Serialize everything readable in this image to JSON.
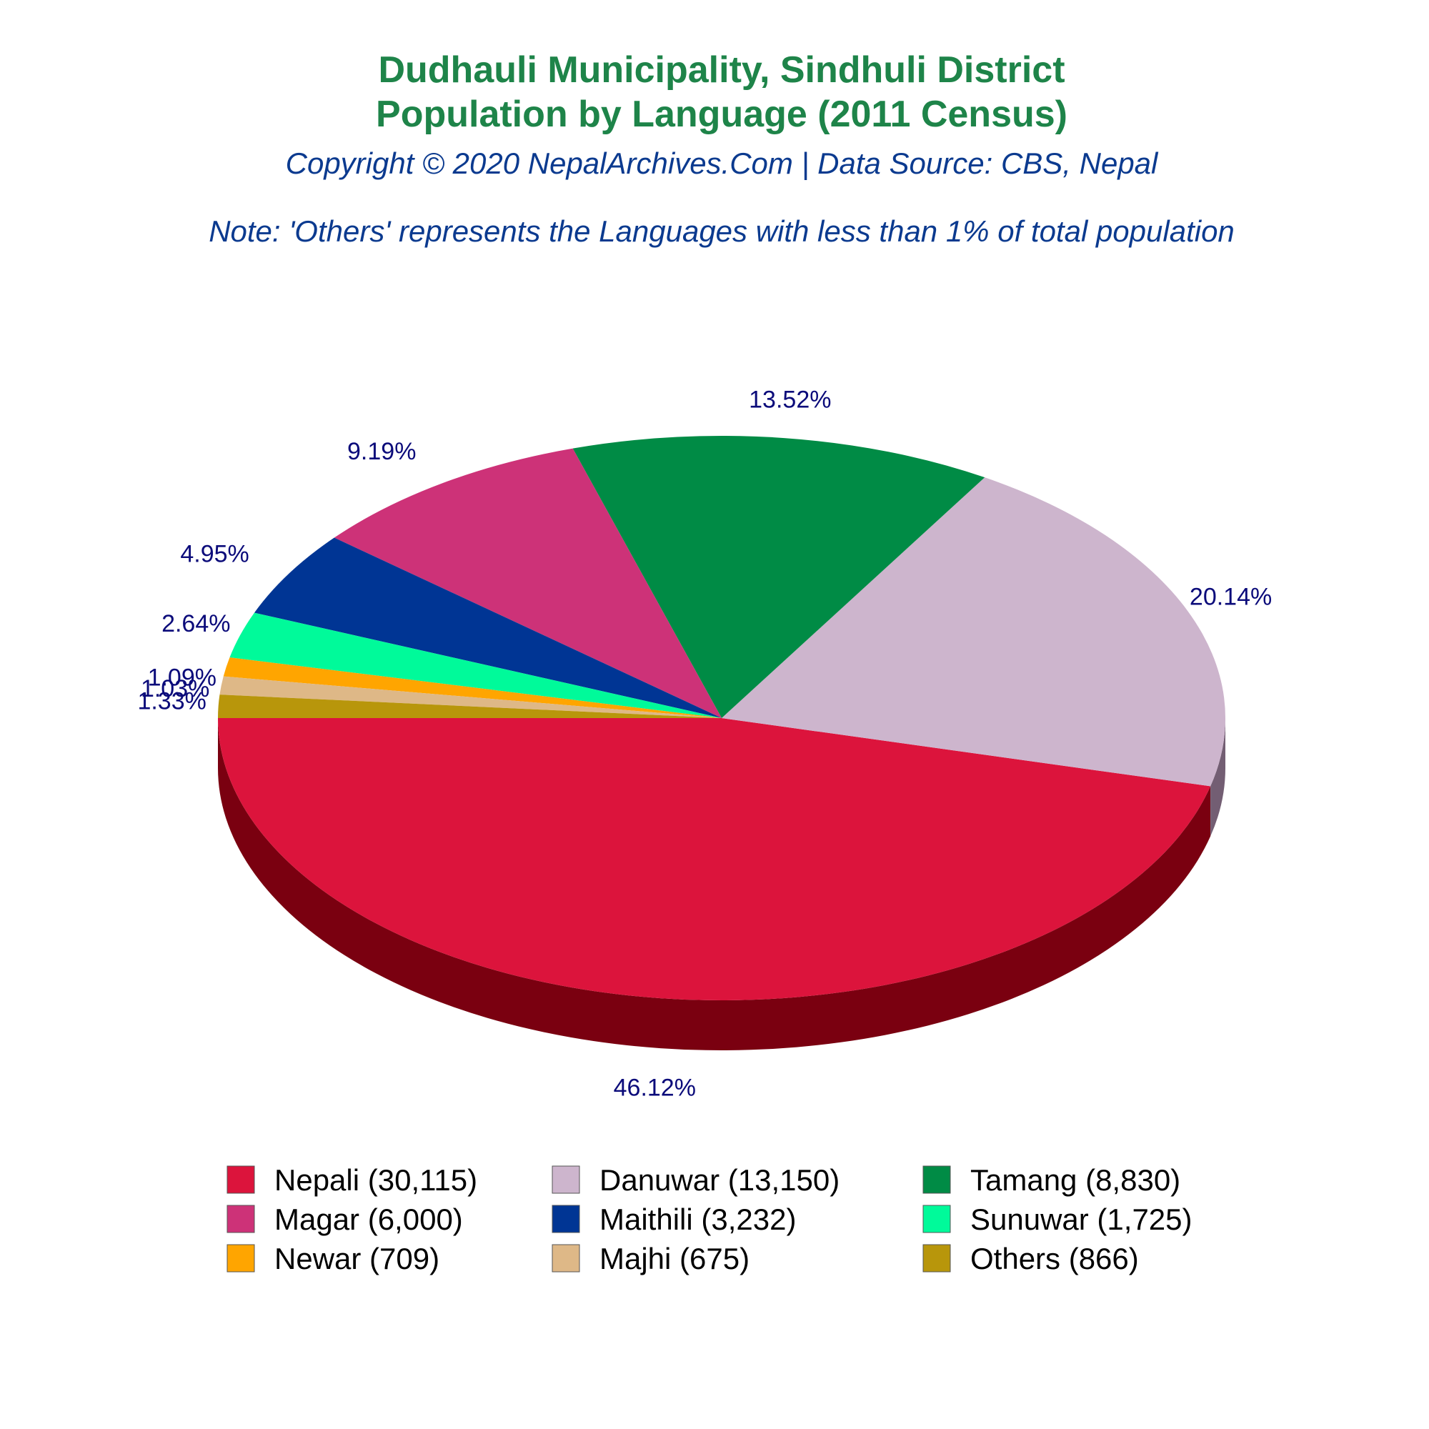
{
  "title_line1": "Dudhauli Municipality, Sindhuli District",
  "title_line2": "Population by Language (2011 Census)",
  "subtitle": "Copyright © 2020 NepalArchives.Com | Data Source: CBS, Nepal",
  "note": "Note: 'Others' represents the Languages with less than 1% of total population",
  "chart_data": {
    "type": "pie",
    "style": "3d",
    "title": "Dudhauli Municipality, Sindhuli District Population by Language (2011 Census)",
    "legend_position": "bottom",
    "slices": [
      {
        "name": "Nepali",
        "value": 30115,
        "percent": 46.12,
        "label": "46.12%",
        "legend": "Nepali (30,115)",
        "color": "#dc143c",
        "side_color": "#7a0010"
      },
      {
        "name": "Danuwar",
        "value": 13150,
        "percent": 20.14,
        "label": "20.14%",
        "legend": "Danuwar (13,150)",
        "color": "#cdb5cd",
        "side_color": "#735e73"
      },
      {
        "name": "Tamang",
        "value": 8830,
        "percent": 13.52,
        "label": "13.52%",
        "legend": "Tamang (8,830)",
        "color": "#008b45",
        "side_color": "#002e00"
      },
      {
        "name": "Magar",
        "value": 6000,
        "percent": 9.19,
        "label": "9.19%",
        "legend": "Magar (6,000)",
        "color": "#cd3278",
        "side_color": "#6e0020"
      },
      {
        "name": "Maithili",
        "value": 3232,
        "percent": 4.95,
        "label": "4.95%",
        "legend": "Maithili (3,232)",
        "color": "#003594",
        "side_color": "#001a4d"
      },
      {
        "name": "Sunuwar",
        "value": 1725,
        "percent": 2.64,
        "label": "2.64%",
        "legend": "Sunuwar (1,725)",
        "color": "#00fa9a",
        "side_color": "#00804d"
      },
      {
        "name": "Newar",
        "value": 709,
        "percent": 1.09,
        "label": "1.09%",
        "legend": "Newar (709)",
        "color": "#ffa500",
        "side_color": "#8a5800"
      },
      {
        "name": "Majhi",
        "value": 675,
        "percent": 1.03,
        "label": "1.03%",
        "legend": "Majhi (675)",
        "color": "#deb887",
        "side_color": "#7a6040"
      },
      {
        "name": "Others",
        "value": 866,
        "percent": 1.33,
        "label": "1.33%",
        "legend": "Others (866)",
        "color": "#b8960b",
        "side_color": "#5c4b05"
      }
    ]
  }
}
